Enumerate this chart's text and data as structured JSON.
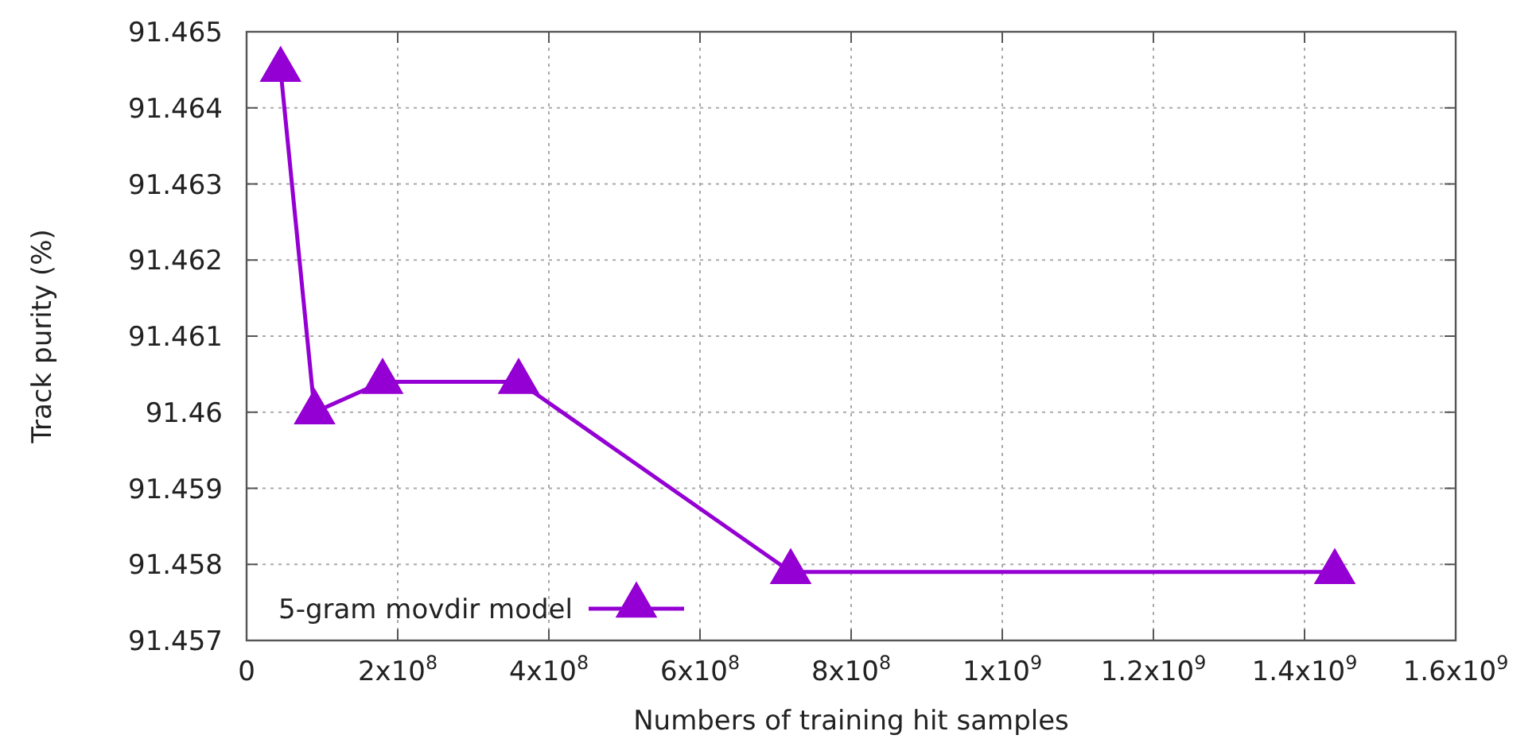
{
  "chart_data": {
    "type": "line",
    "xlabel": "Numbers of training hit samples",
    "ylabel": "Track purity (%)",
    "x": [
      45000000,
      90000000,
      180000000,
      360000000,
      720000000,
      1440000000
    ],
    "series": [
      {
        "name": "5-gram movdir model",
        "color": "#9400d3",
        "values": [
          91.4645,
          91.46,
          91.4604,
          91.4604,
          91.4579,
          91.4579
        ]
      }
    ],
    "xlim": [
      0,
      1600000000
    ],
    "xticks": [
      0,
      {
        "value": 200000000,
        "label": "2x10$^{8}$"
      },
      {
        "value": 400000000,
        "label": "4x10$^{8}$"
      },
      {
        "value": 600000000,
        "label": "6x10$^{8}$"
      },
      {
        "value": 800000000,
        "label": "8x10$^{8}$"
      },
      {
        "value": 1000000000,
        "label": "1x10$^{9}$"
      },
      {
        "value": 1200000000,
        "label": "1.2x10$^{9}$"
      },
      {
        "value": 1400000000,
        "label": "1.4x10$^{9}$"
      },
      {
        "value": 1600000000,
        "label": "1.6x10$^{9}$"
      }
    ],
    "ylim": [
      91.457,
      91.465
    ],
    "yticks": [
      91.457,
      91.458,
      91.459,
      91.46,
      91.461,
      91.462,
      91.463,
      91.464,
      91.465
    ],
    "grid": true,
    "legend": "bottom left",
    "marker": "triangle",
    "line_style": "solid"
  }
}
